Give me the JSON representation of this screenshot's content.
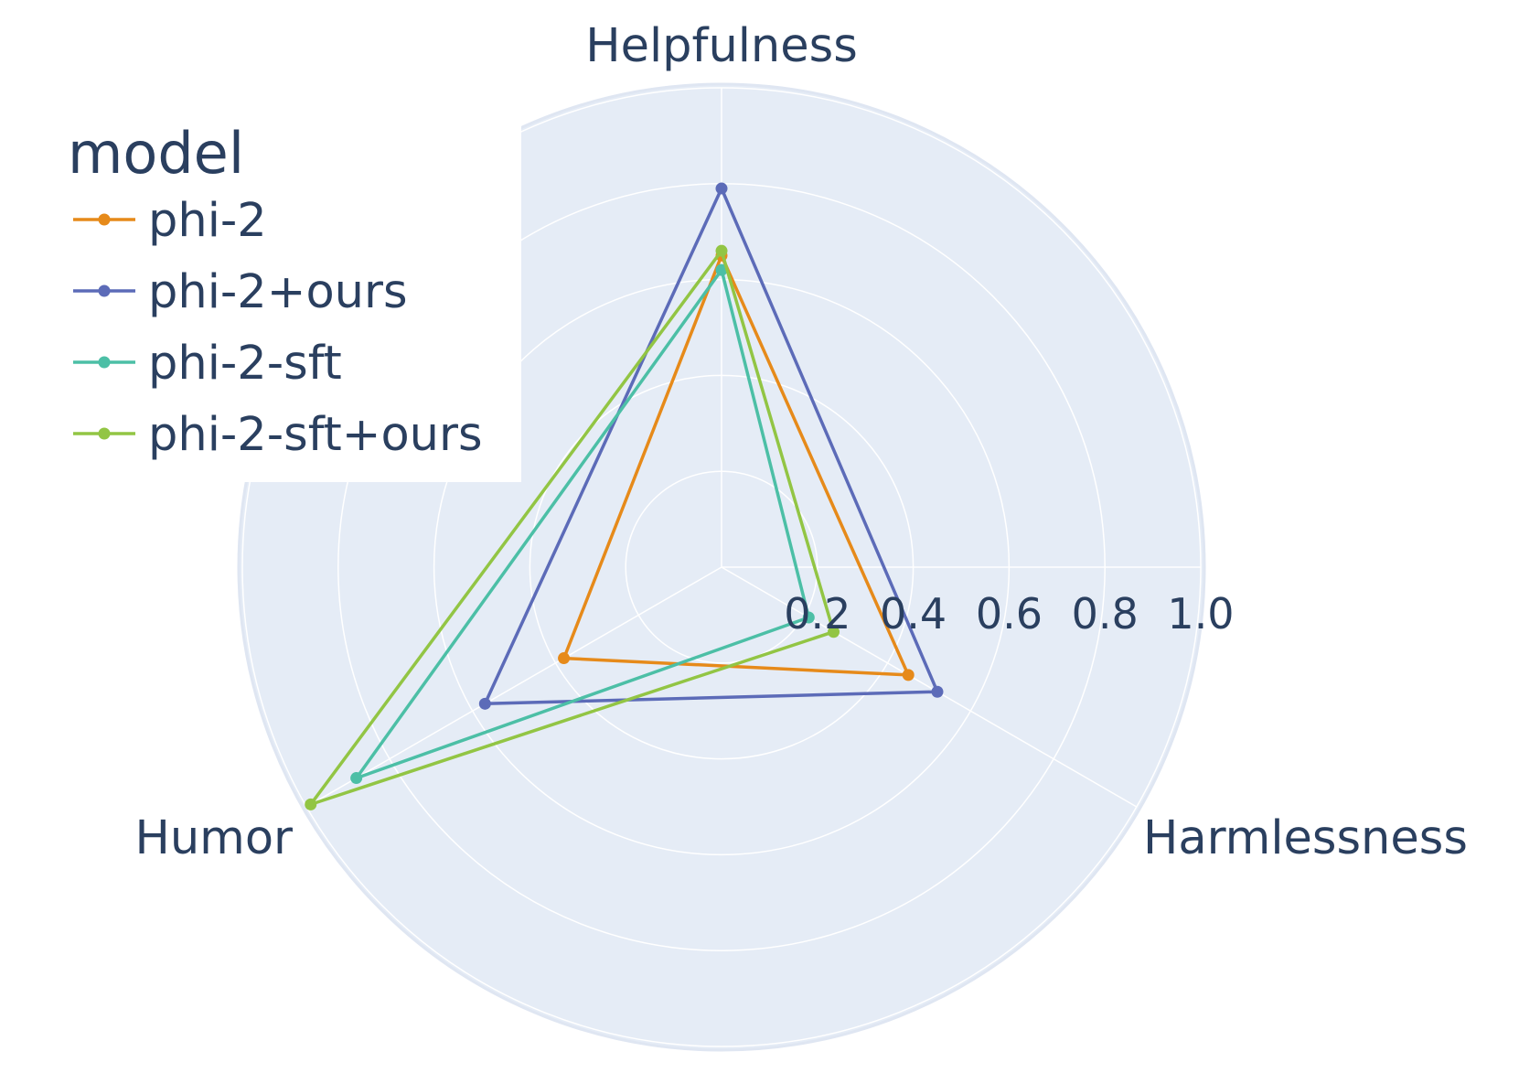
{
  "chart_data": {
    "type": "radar",
    "axes": [
      "Helpfulness",
      "Harmlessness",
      "Humor"
    ],
    "radial_range": [
      0,
      1.0
    ],
    "radial_ticks": [
      "0.2",
      "0.4",
      "0.6",
      "0.8",
      "1.0"
    ],
    "radial_tick_values": [
      0.2,
      0.4,
      0.6,
      0.8,
      1.0
    ],
    "legend_title": "model",
    "legend_position": "top-left",
    "grid": true,
    "colors": {
      "background": "#E5ECF6",
      "grid": "#ffffff",
      "text": "#2A3F5F"
    },
    "series": [
      {
        "name": "phi-2",
        "color": "#E68A1A",
        "values": [
          0.65,
          0.45,
          0.38
        ]
      },
      {
        "name": "phi-2+ours",
        "color": "#5C6BB8",
        "values": [
          0.79,
          0.52,
          0.57
        ]
      },
      {
        "name": "phi-2-sft",
        "color": "#4CBFA6",
        "values": [
          0.62,
          0.21,
          0.88
        ]
      },
      {
        "name": "phi-2-sft+ours",
        "color": "#92C544",
        "values": [
          0.66,
          0.27,
          0.99
        ]
      }
    ]
  }
}
